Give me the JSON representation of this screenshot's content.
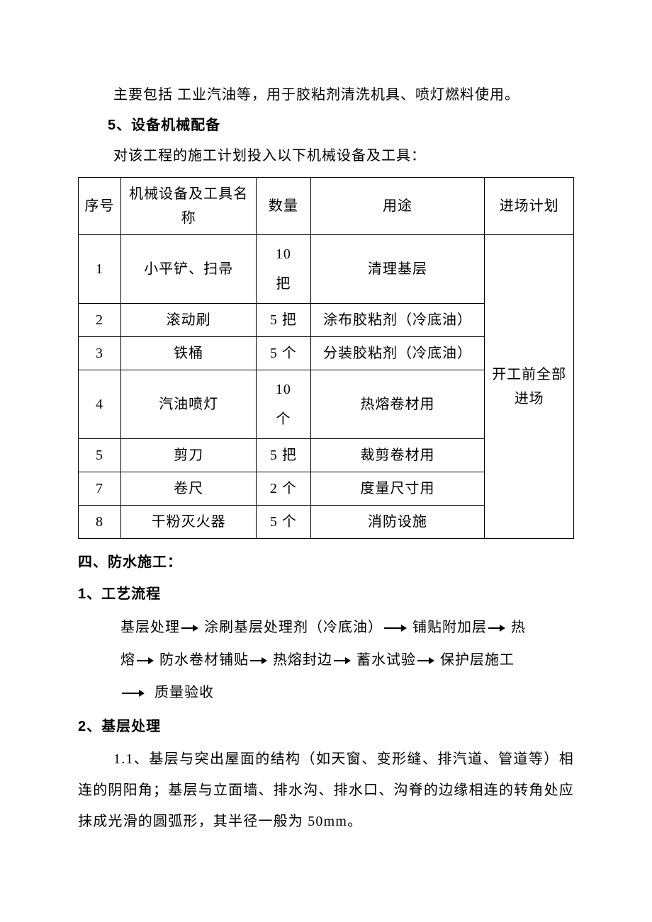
{
  "intro_para": "主要包括 工业汽油等，用于胶粘剂清洗机具、喷灯燃料使用。",
  "heading5": "5、设备机械配备",
  "intro2": "对该工程的施工计划投入以下机械设备及工具：",
  "table": {
    "columns": [
      "序号",
      "机械设备及工具名称",
      "数量",
      "用途",
      "进场计划"
    ],
    "plan_merged": "开工前全部进场",
    "rows": [
      {
        "seq": "1",
        "name": "小平铲、扫帚",
        "qty": "10把",
        "use": "清理基层"
      },
      {
        "seq": "2",
        "name": "滚动刷",
        "qty": "5 把",
        "use": "涂布胶粘剂（冷底油）"
      },
      {
        "seq": "3",
        "name": "铁桶",
        "qty": "5 个",
        "use": "分装胶粘剂（冷底油）"
      },
      {
        "seq": "4",
        "name": "汽油喷灯",
        "qty": "10个",
        "use": "热熔卷材用"
      },
      {
        "seq": "5",
        "name": "剪刀",
        "qty": "5 把",
        "use": "裁剪卷材用"
      },
      {
        "seq": "7",
        "name": "卷尺",
        "qty": "2 个",
        "use": "度量尺寸用"
      },
      {
        "seq": "8",
        "name": "干粉灭火器",
        "qty": "5 个",
        "use": "消防设施"
      }
    ]
  },
  "sec4_title": "四、防水施工：",
  "sec4_1": "1、工艺流程",
  "flow_steps": [
    "基层处理",
    "涂刷基层处理剂（冷底油）",
    "铺贴附加层",
    "热熔",
    "防水卷材铺贴",
    "热熔封边",
    "蓄水试验",
    "保护层施工",
    "质量验收"
  ],
  "sec4_2": " 2、基层处理",
  "sec4_2_body": "1.1、基层与突出屋面的结构（如天窗、变形缝、排汽道、管道等）相连的阴阳角；基层与立面墙、排水沟、排水口、沟脊的边缘相连的转角处应抹成光滑的圆弧形，其半径一般为 50mm。"
}
